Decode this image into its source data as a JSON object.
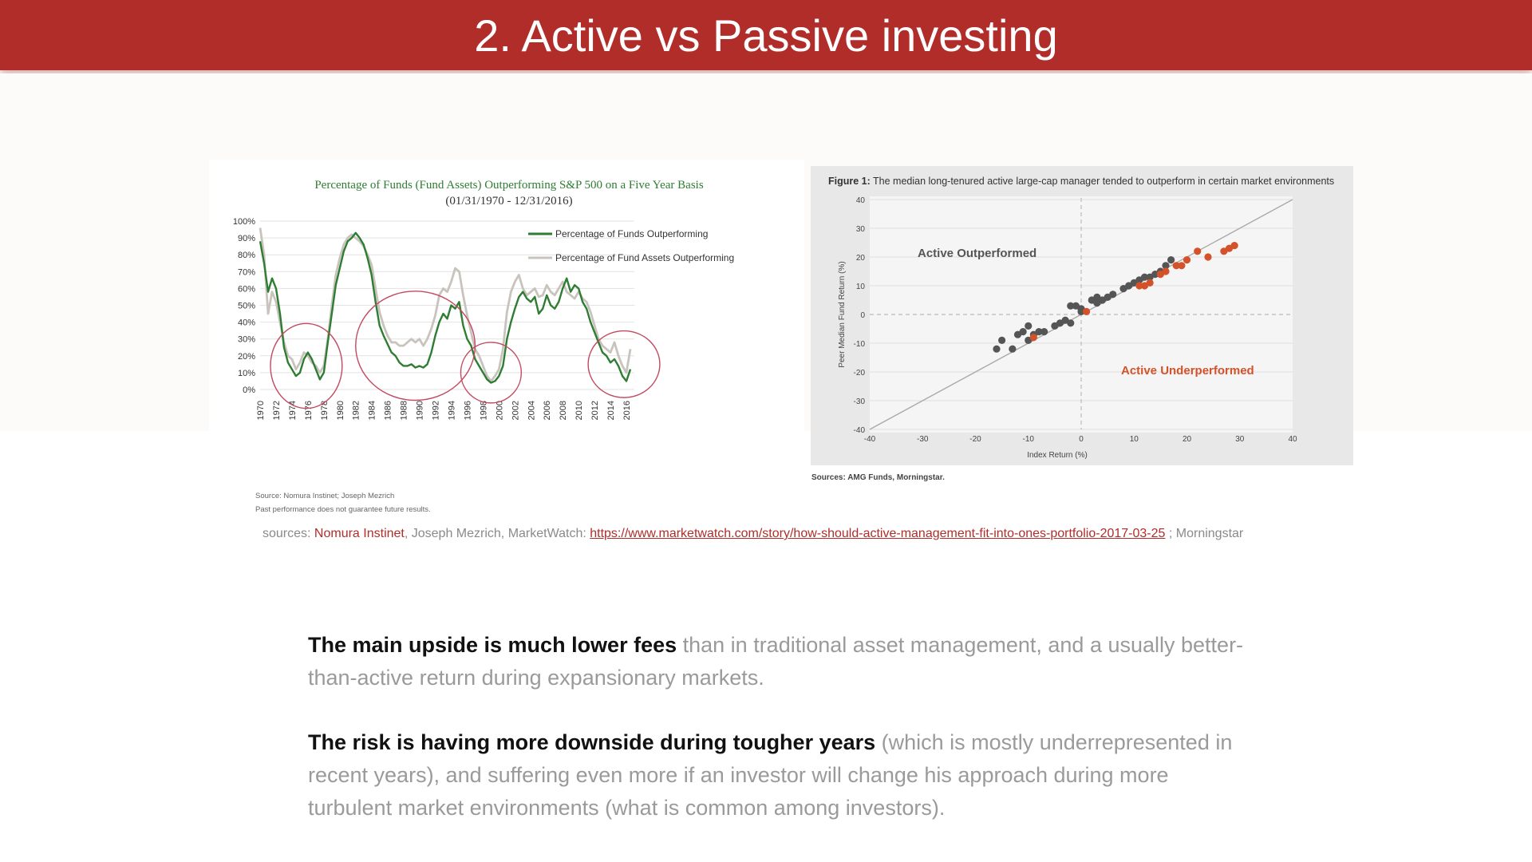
{
  "slide": {
    "title": "2. Active vs Passive investing"
  },
  "colors": {
    "header_red": "#b02d2a",
    "funds_green": "#2e7d32",
    "assets_gray": "#c8c4bd",
    "outperf_gray": "#555555",
    "underperf_orange": "#d4522a",
    "circle_red": "#c24a5e"
  },
  "sources": {
    "prefix": "sources: ",
    "nomura": "Nomura Instinet",
    "middle": ", Joseph Mezrich, MarketWatch: ",
    "link": "https://www.marketwatch.com/story/how-should-active-management-fit-into-ones-portfolio-2017-03-25",
    "suffix": " ; Morningstar"
  },
  "body": {
    "p1_bold": "The main upside is much lower fees",
    "p1_rest": " than in traditional asset management, and a usually better-than-active return during expansionary markets.",
    "p2_bold": "The risk is having more downside during tougher years",
    "p2_rest": " (which is mostly underrepresented in recent years), and suffering even more if an investor will change his approach during more turbulent market environments (what is common among investors)."
  },
  "chart_data": [
    {
      "type": "line",
      "title": "Percentage of Funds (Fund Assets) Outperforming S&P 500 on a Five Year Basis",
      "subtitle": "(01/31/1970 - 12/31/2016)",
      "xlabel": "",
      "ylabel": "",
      "xlim": [
        1970,
        2017
      ],
      "ylim": [
        0,
        100
      ],
      "yticks": [
        "0%",
        "10%",
        "20%",
        "30%",
        "40%",
        "50%",
        "60%",
        "70%",
        "80%",
        "90%",
        "100%"
      ],
      "xticks": [
        "1970",
        "1972",
        "1974",
        "1976",
        "1978",
        "1980",
        "1982",
        "1984",
        "1986",
        "1988",
        "1990",
        "1992",
        "1994",
        "1996",
        "1998",
        "2000",
        "2002",
        "2004",
        "2006",
        "2008",
        "2010",
        "2012",
        "2014",
        "2016"
      ],
      "legend_position": "top-right",
      "series": [
        {
          "name": "Percentage of Funds Outperforming",
          "color": "#2e7d32",
          "x": [
            1970,
            1970.5,
            1971,
            1971.5,
            1972,
            1972.5,
            1973,
            1973.5,
            1974,
            1974.5,
            1975,
            1975.5,
            1976,
            1976.5,
            1977,
            1977.5,
            1978,
            1978.5,
            1979,
            1979.5,
            1980,
            1980.5,
            1981,
            1981.5,
            1982,
            1982.5,
            1983,
            1983.5,
            1984,
            1984.5,
            1985,
            1985.5,
            1986,
            1986.5,
            1987,
            1987.5,
            1988,
            1988.5,
            1989,
            1989.5,
            1990,
            1990.5,
            1991,
            1991.5,
            1992,
            1992.5,
            1993,
            1993.5,
            1994,
            1994.5,
            1995,
            1995.5,
            1996,
            1996.5,
            1997,
            1997.5,
            1998,
            1998.5,
            1999,
            1999.5,
            2000,
            2000.5,
            2001,
            2001.5,
            2002,
            2002.5,
            2003,
            2003.5,
            2004,
            2004.5,
            2005,
            2005.5,
            2006,
            2006.5,
            2007,
            2007.5,
            2008,
            2008.5,
            2009,
            2009.5,
            2010,
            2010.5,
            2011,
            2011.5,
            2012,
            2012.5,
            2013,
            2013.5,
            2014,
            2014.5,
            2015,
            2015.5,
            2016,
            2016.5
          ],
          "values": [
            88,
            75,
            58,
            66,
            60,
            45,
            25,
            16,
            12,
            8,
            10,
            18,
            22,
            18,
            12,
            6,
            10,
            28,
            45,
            62,
            72,
            82,
            88,
            90,
            93,
            90,
            86,
            78,
            68,
            52,
            38,
            32,
            27,
            22,
            20,
            16,
            14,
            14,
            15,
            13,
            14,
            13,
            15,
            22,
            32,
            40,
            45,
            42,
            50,
            48,
            52,
            38,
            30,
            26,
            18,
            14,
            10,
            6,
            4,
            5,
            8,
            14,
            30,
            40,
            48,
            55,
            58,
            54,
            52,
            55,
            45,
            48,
            56,
            50,
            48,
            52,
            60,
            66,
            58,
            62,
            60,
            52,
            48,
            40,
            34,
            28,
            22,
            20,
            16,
            18,
            14,
            8,
            5,
            12
          ]
        },
        {
          "name": "Percentage of Fund Assets Outperforming",
          "color": "#c8c4bd",
          "x": [
            1970,
            1970.5,
            1971,
            1971.5,
            1972,
            1972.5,
            1973,
            1973.5,
            1974,
            1974.5,
            1975,
            1975.5,
            1976,
            1976.5,
            1977,
            1977.5,
            1978,
            1978.5,
            1979,
            1979.5,
            1980,
            1980.5,
            1981,
            1981.5,
            1982,
            1982.5,
            1983,
            1983.5,
            1984,
            1984.5,
            1985,
            1985.5,
            1986,
            1986.5,
            1987,
            1987.5,
            1988,
            1988.5,
            1989,
            1989.5,
            1990,
            1990.5,
            1991,
            1991.5,
            1992,
            1992.5,
            1993,
            1993.5,
            1994,
            1994.5,
            1995,
            1995.5,
            1996,
            1996.5,
            1997,
            1997.5,
            1998,
            1998.5,
            1999,
            1999.5,
            2000,
            2000.5,
            2001,
            2001.5,
            2002,
            2002.5,
            2003,
            2003.5,
            2004,
            2004.5,
            2005,
            2005.5,
            2006,
            2006.5,
            2007,
            2007.5,
            2008,
            2008.5,
            2009,
            2009.5,
            2010,
            2010.5,
            2011,
            2011.5,
            2012,
            2012.5,
            2013,
            2013.5,
            2014,
            2014.5,
            2015,
            2015.5,
            2016,
            2016.5
          ],
          "values": [
            96,
            80,
            45,
            58,
            52,
            40,
            28,
            20,
            18,
            12,
            16,
            22,
            20,
            16,
            14,
            10,
            14,
            30,
            50,
            68,
            78,
            86,
            90,
            92,
            90,
            88,
            85,
            80,
            74,
            60,
            46,
            38,
            32,
            28,
            28,
            26,
            26,
            28,
            30,
            28,
            30,
            26,
            30,
            36,
            44,
            56,
            60,
            58,
            64,
            72,
            70,
            56,
            44,
            34,
            24,
            20,
            14,
            8,
            5,
            8,
            12,
            24,
            46,
            58,
            64,
            68,
            60,
            56,
            58,
            60,
            55,
            56,
            62,
            58,
            56,
            60,
            64,
            58,
            56,
            54,
            58,
            54,
            52,
            46,
            38,
            30,
            26,
            24,
            22,
            28,
            20,
            14,
            10,
            24
          ]
        }
      ],
      "annotations": [
        "circle 1974-1977 lows",
        "circle 1987-1991 lows",
        "circle 1998-1999 lows",
        "circle 2014-2016 lows"
      ],
      "footnotes": [
        "Source: Nomura Instinet; Joseph Mezrich",
        "Past performance does not guarantee future results."
      ]
    },
    {
      "type": "scatter",
      "title": "Figure 1: The median long-tenured active large-cap manager tended to outperform in certain market environments",
      "title_bold": "Figure 1:",
      "title_rest": " The median long-tenured active large-cap manager tended to outperform in certain market environments",
      "xlabel": "Index Return (%)",
      "ylabel": "Peer Median Fund Return (%)",
      "xlim": [
        -40,
        40
      ],
      "ylim": [
        -40,
        40
      ],
      "xticks": [
        "-40",
        "-30",
        "-20",
        "-10",
        "0",
        "10",
        "20",
        "30",
        "40"
      ],
      "yticks": [
        "40",
        "30",
        "20",
        "10",
        "0",
        "-10",
        "-20",
        "-30",
        "-40"
      ],
      "label_outperformed": "Active Outperformed",
      "label_underperformed": "Active Underperformed",
      "source": "Sources: AMG Funds, Morningstar.",
      "series": [
        {
          "name": "Active Outperformed",
          "color": "#555555",
          "x": [
            -16,
            -15,
            -13,
            -12,
            -11,
            -10,
            -10,
            -9,
            -8,
            -7,
            -5,
            -4,
            -3,
            -2,
            -2,
            -1,
            0,
            0,
            2,
            3,
            3,
            4,
            5,
            6,
            8,
            9,
            10,
            11,
            12,
            13,
            14,
            15,
            16,
            17
          ],
          "y": [
            -12,
            -9,
            -12,
            -7,
            -6,
            -9,
            -4,
            -7,
            -6,
            -6,
            -4,
            -3,
            -2,
            -3,
            3,
            3,
            2,
            1,
            5,
            4,
            6,
            5,
            6,
            7,
            9,
            10,
            11,
            12,
            13,
            13,
            14,
            15,
            17,
            19
          ]
        },
        {
          "name": "Active Underperformed",
          "color": "#d4522a",
          "x": [
            -9,
            1,
            11,
            12,
            13,
            15,
            16,
            18,
            19,
            20,
            22,
            24,
            27,
            28,
            29
          ],
          "y": [
            -8,
            1,
            10,
            10,
            11,
            14,
            15,
            17,
            17,
            19,
            22,
            20,
            22,
            23,
            24
          ]
        }
      ]
    }
  ]
}
